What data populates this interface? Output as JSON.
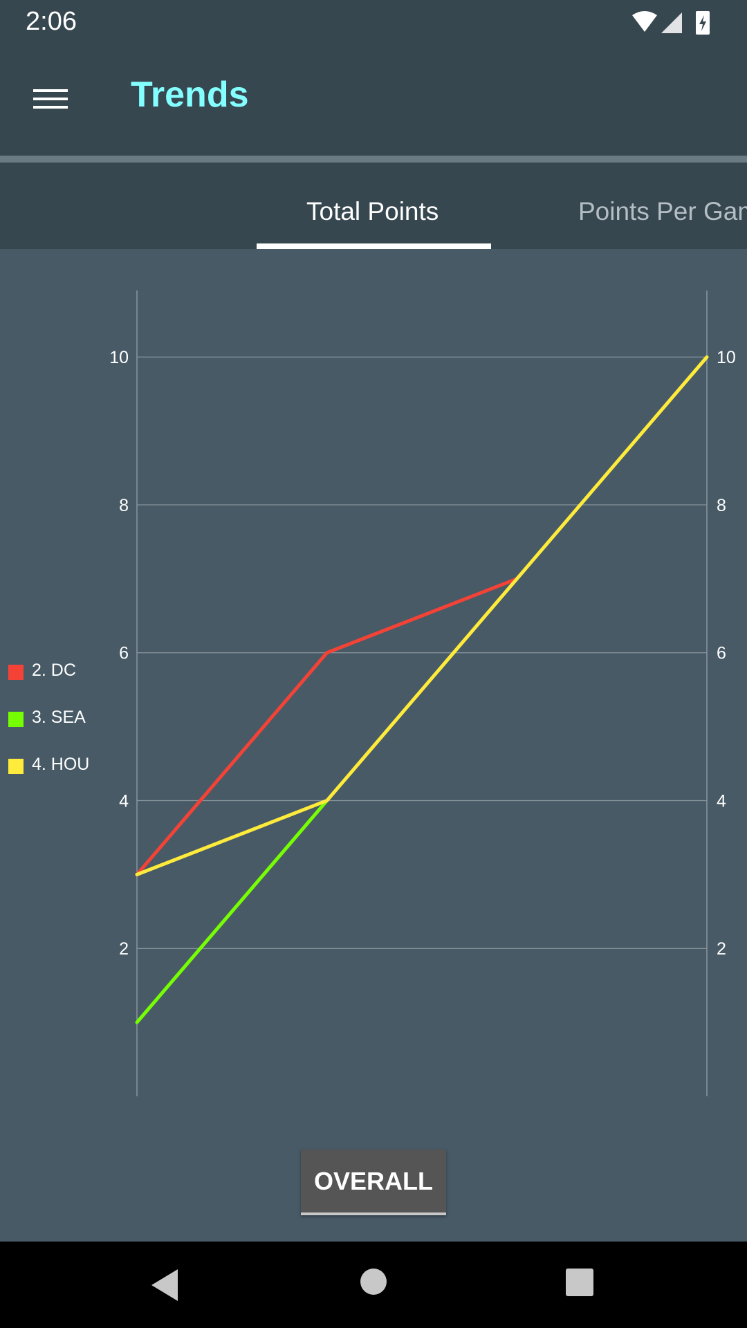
{
  "status_bar": {
    "time": "2:06",
    "icons": [
      "wifi-icon",
      "cell-signal-icon",
      "battery-charging-icon"
    ]
  },
  "toolbar": {
    "title": "Trends",
    "menu_icon": "hamburger-menu-icon"
  },
  "tabs": [
    {
      "label": "Total Points",
      "selected": true
    },
    {
      "label": "Points Per Game",
      "selected": false
    }
  ],
  "chart_data": {
    "type": "line",
    "x": [
      1,
      2,
      3,
      4
    ],
    "series": [
      {
        "name": "2. DC",
        "color": "#f44336",
        "values": [
          3,
          6,
          7,
          null
        ]
      },
      {
        "name": "3. SEA",
        "color": "#76ff03",
        "values": [
          1,
          4,
          null,
          null
        ]
      },
      {
        "name": "4. HOU",
        "color": "#ffeb3b",
        "values": [
          3,
          4,
          7,
          10
        ]
      }
    ],
    "ylim": [
      0,
      10.9
    ],
    "yticks": [
      "2",
      "4",
      "6",
      "8",
      "10"
    ],
    "yticks_right": [
      "2",
      "4",
      "6",
      "8",
      "10"
    ],
    "legend_position": "left",
    "grid": true
  },
  "overall_button": {
    "label": "OVERALL"
  },
  "nav_bar": {
    "icons": [
      "back-icon",
      "home-icon",
      "recents-icon"
    ]
  }
}
